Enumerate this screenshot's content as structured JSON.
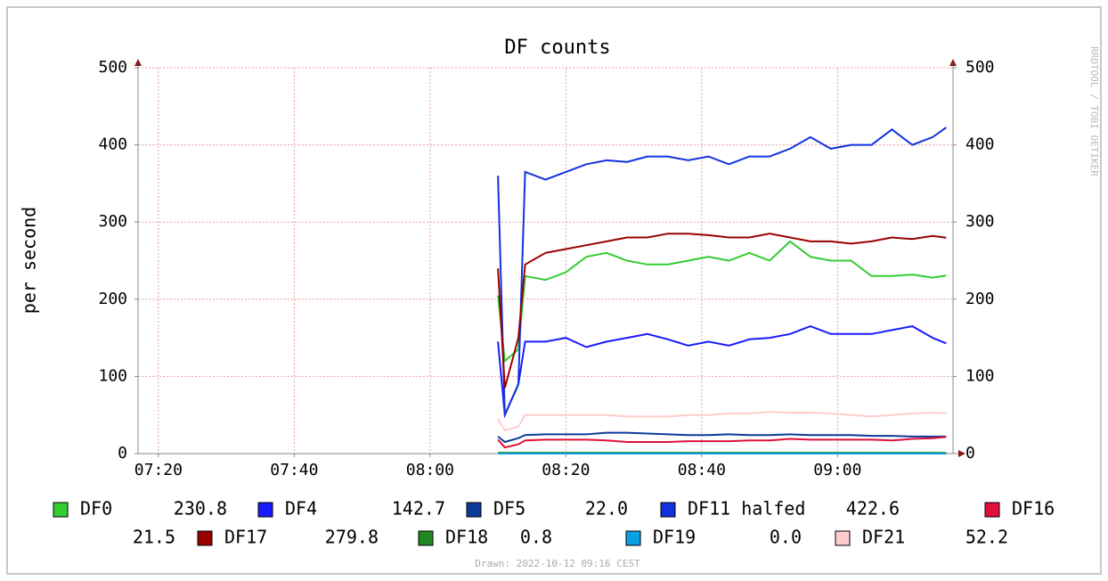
{
  "chart_data": {
    "type": "line",
    "step": false,
    "title": "DF counts",
    "y_label": "per second",
    "side_text": "RRDTOOL / TOBI OETIKER",
    "footer": "Drawn: 2022-10-12 09:16 CEST",
    "xlim": [
      "07:17",
      "09:17"
    ],
    "xticks": [
      "07:20",
      "07:40",
      "08:00",
      "08:20",
      "08:40",
      "09:00"
    ],
    "ylim": [
      0,
      500
    ],
    "yticks": [
      0,
      100,
      200,
      300,
      400,
      500
    ],
    "grid": true,
    "x": [
      "08:10",
      "08:11",
      "08:13",
      "08:14",
      "08:17",
      "08:20",
      "08:23",
      "08:26",
      "08:29",
      "08:32",
      "08:35",
      "08:38",
      "08:41",
      "08:44",
      "08:47",
      "08:50",
      "08:53",
      "08:56",
      "08:59",
      "09:02",
      "09:05",
      "09:08",
      "09:11",
      "09:14",
      "09:16"
    ],
    "series": [
      {
        "name": "DF0",
        "color": "#33cc33",
        "last": 230.8,
        "values": [
          205,
          120,
          135,
          230,
          225,
          235,
          255,
          260,
          250,
          245,
          245,
          250,
          255,
          250,
          260,
          250,
          275,
          255,
          250,
          250,
          230,
          230,
          232,
          228,
          230.8
        ]
      },
      {
        "name": "DF4",
        "color": "#1a1aff",
        "last": 142.7,
        "values": [
          145,
          50,
          90,
          145,
          145,
          150,
          138,
          145,
          150,
          155,
          148,
          140,
          145,
          140,
          148,
          150,
          155,
          165,
          155,
          155,
          155,
          160,
          165,
          150,
          142.7
        ]
      },
      {
        "name": "DF5",
        "color": "#0d3a99",
        "last": 22.0,
        "values": [
          22,
          15,
          20,
          24,
          25,
          25,
          25,
          27,
          27,
          26,
          25,
          24,
          24,
          25,
          24,
          24,
          25,
          24,
          24,
          24,
          23,
          23,
          22,
          22,
          22.0
        ]
      },
      {
        "name": "DF11 halfed",
        "color": "#1133dd",
        "last": 422.6,
        "values": [
          360,
          50,
          90,
          365,
          355,
          365,
          375,
          380,
          378,
          385,
          385,
          380,
          385,
          375,
          385,
          385,
          395,
          410,
          395,
          400,
          400,
          420,
          400,
          410,
          422.6
        ]
      },
      {
        "name": "DF16",
        "color": "#e0103a",
        "last": 21.5,
        "values": [
          18,
          8,
          12,
          17,
          18,
          18,
          18,
          17,
          15,
          15,
          15,
          16,
          16,
          16,
          17,
          17,
          19,
          18,
          18,
          18,
          18,
          17,
          19,
          20,
          21.5
        ]
      },
      {
        "name": "DF17",
        "color": "#990000",
        "last": 279.8,
        "values": [
          240,
          85,
          150,
          245,
          260,
          265,
          270,
          275,
          280,
          280,
          285,
          285,
          283,
          280,
          280,
          285,
          280,
          275,
          275,
          272,
          275,
          280,
          278,
          282,
          279.8
        ]
      },
      {
        "name": "DF18",
        "color": "#228822",
        "last": 0.8,
        "values": [
          1,
          1,
          1,
          1,
          1,
          1,
          1,
          1,
          1,
          1,
          1,
          1,
          1,
          1,
          1,
          1,
          1,
          1,
          1,
          1,
          1,
          1,
          1,
          1,
          0.8
        ]
      },
      {
        "name": "DF19",
        "color": "#0aa0e6",
        "last": 0.0,
        "values": [
          0,
          0,
          0,
          0,
          0,
          0,
          0,
          0,
          0,
          0,
          0,
          0,
          0,
          0,
          0,
          0,
          0,
          0,
          0,
          0,
          0,
          0,
          0,
          0,
          0
        ]
      },
      {
        "name": "DF21",
        "color": "#ffcccc",
        "last": 52.2,
        "values": [
          45,
          30,
          35,
          50,
          50,
          50,
          50,
          50,
          48,
          48,
          48,
          50,
          50,
          52,
          52,
          54,
          53,
          53,
          52,
          50,
          48,
          50,
          52,
          53,
          52.2
        ]
      }
    ]
  }
}
